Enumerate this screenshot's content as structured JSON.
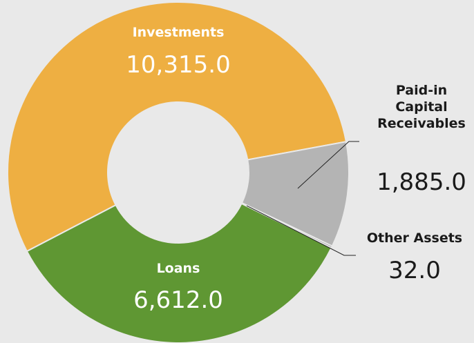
{
  "chart_data": {
    "type": "donut",
    "categories": [
      "Investments",
      "Paid-in Capital Receivables",
      "Other Assets",
      "Loans"
    ],
    "values": [
      10315.0,
      1885.0,
      32.0,
      6612.0
    ],
    "value_labels": [
      "10,315.0",
      "1,885.0",
      "32.0",
      "6,612.0"
    ],
    "colors": [
      "#eeaf42",
      "#b4b4b4",
      "#7a7a7a",
      "#5f9733"
    ]
  }
}
